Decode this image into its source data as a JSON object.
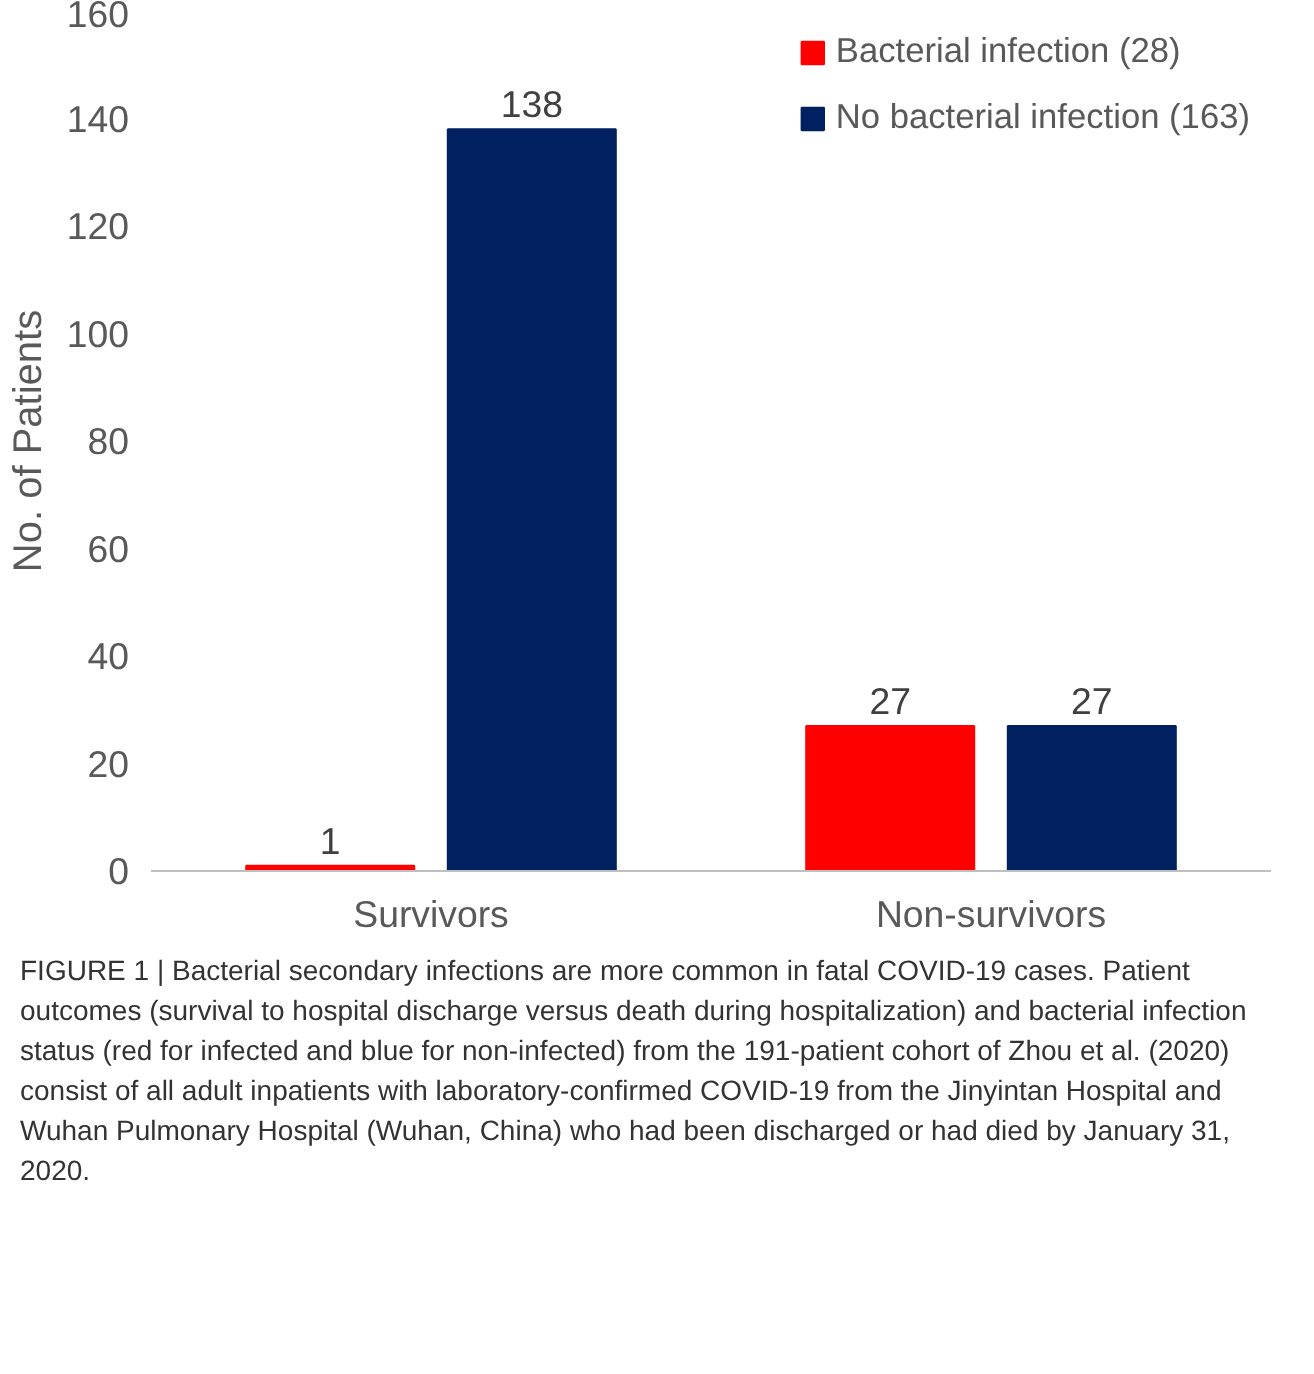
{
  "chart_data": {
    "type": "bar",
    "ylabel": "No. of Patients",
    "categories": [
      "Survivors",
      "Non-survivors"
    ],
    "series": [
      {
        "name": "Bacterial infection (28)",
        "color": "#ff0000",
        "values": [
          1,
          27
        ]
      },
      {
        "name": "No bacterial infection (163)",
        "color": "#002060",
        "values": [
          138,
          27
        ]
      }
    ],
    "ylim": [
      0,
      160
    ],
    "yticks": [
      0,
      20,
      40,
      60,
      80,
      100,
      120,
      140,
      160
    ],
    "grid": false,
    "legend": "top right",
    "data_labels": true,
    "annotations": [
      "FIGURE 1 | Bacterial secondary infections are more common in fatal COVID-19 cases. Patient outcomes (survival to hospital discharge versus death during hospitalization) and bacterial infection status (red for infected and blue for non-infected) from the 191-patient cohort of Zhou et al. (2020) consist of all adult inpatients with laboratory-confirmed COVID-19 from the Jinyintan Hospital and Wuhan Pulmonary Hospital (Wuhan, China) who had been discharged or had died by January 31, 2020."
    ]
  }
}
